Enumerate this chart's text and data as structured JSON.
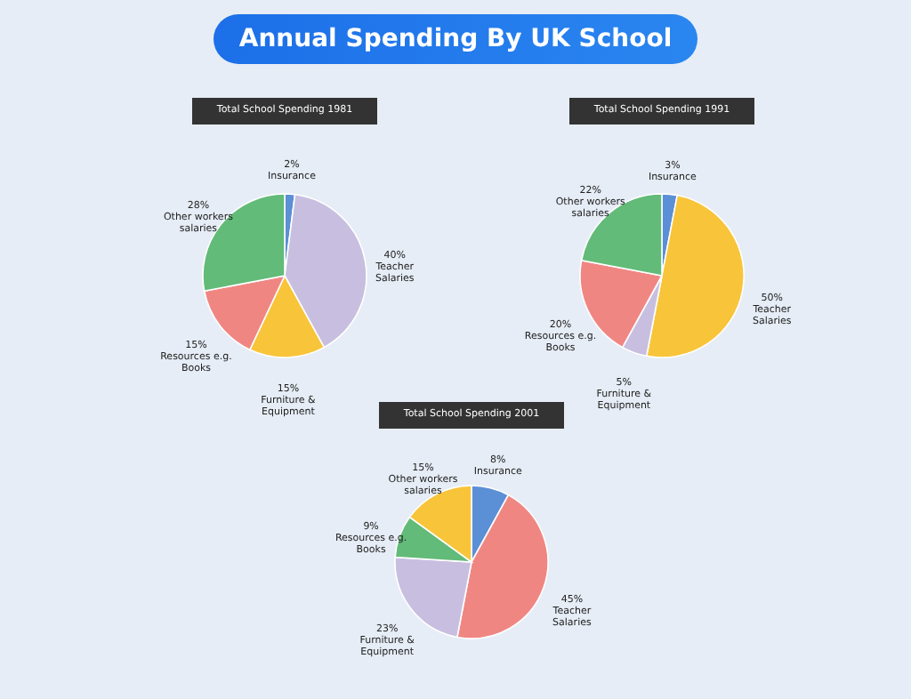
{
  "chart_data": [
    {
      "type": "pie",
      "title": "Annual Spending By UK School",
      "subtitle": "Total School Spending 1981",
      "categories": [
        "Insurance",
        "Teacher Salaries",
        "Furniture & Equipment",
        "Resources e.g. Books",
        "Other workers salaries"
      ],
      "values": [
        2,
        40,
        15,
        15,
        28
      ],
      "value_labels": [
        "2%",
        "40%",
        "15%",
        "15%",
        "28%"
      ],
      "colors": [
        "#5b8fd6",
        "#c8bfe0",
        "#f8c43a",
        "#f08682",
        "#62bb78"
      ]
    },
    {
      "type": "pie",
      "subtitle": "Total School Spending 1991",
      "categories": [
        "Insurance",
        "Teacher Salaries",
        "Furniture & Equipment",
        "Resources e.g. Books",
        "Other workers salaries"
      ],
      "values": [
        3,
        50,
        5,
        20,
        22
      ],
      "value_labels": [
        "3%",
        "50%",
        "5%",
        "20%",
        "22%"
      ],
      "colors": [
        "#5b8fd6",
        "#f8c43a",
        "#c8bfe0",
        "#f08682",
        "#62bb78"
      ]
    },
    {
      "type": "pie",
      "subtitle": "Total School Spending 2001",
      "categories": [
        "Insurance",
        "Teacher Salaries",
        "Furniture & Equipment",
        "Resources e.g. Books",
        "Other workers salaries"
      ],
      "values": [
        8,
        45,
        23,
        9,
        15
      ],
      "value_labels": [
        "8%",
        "45%",
        "23%",
        "9%",
        "15%"
      ],
      "colors": [
        "#5b8fd6",
        "#f08682",
        "#c8bfe0",
        "#62bb78",
        "#f8c43a"
      ]
    }
  ]
}
